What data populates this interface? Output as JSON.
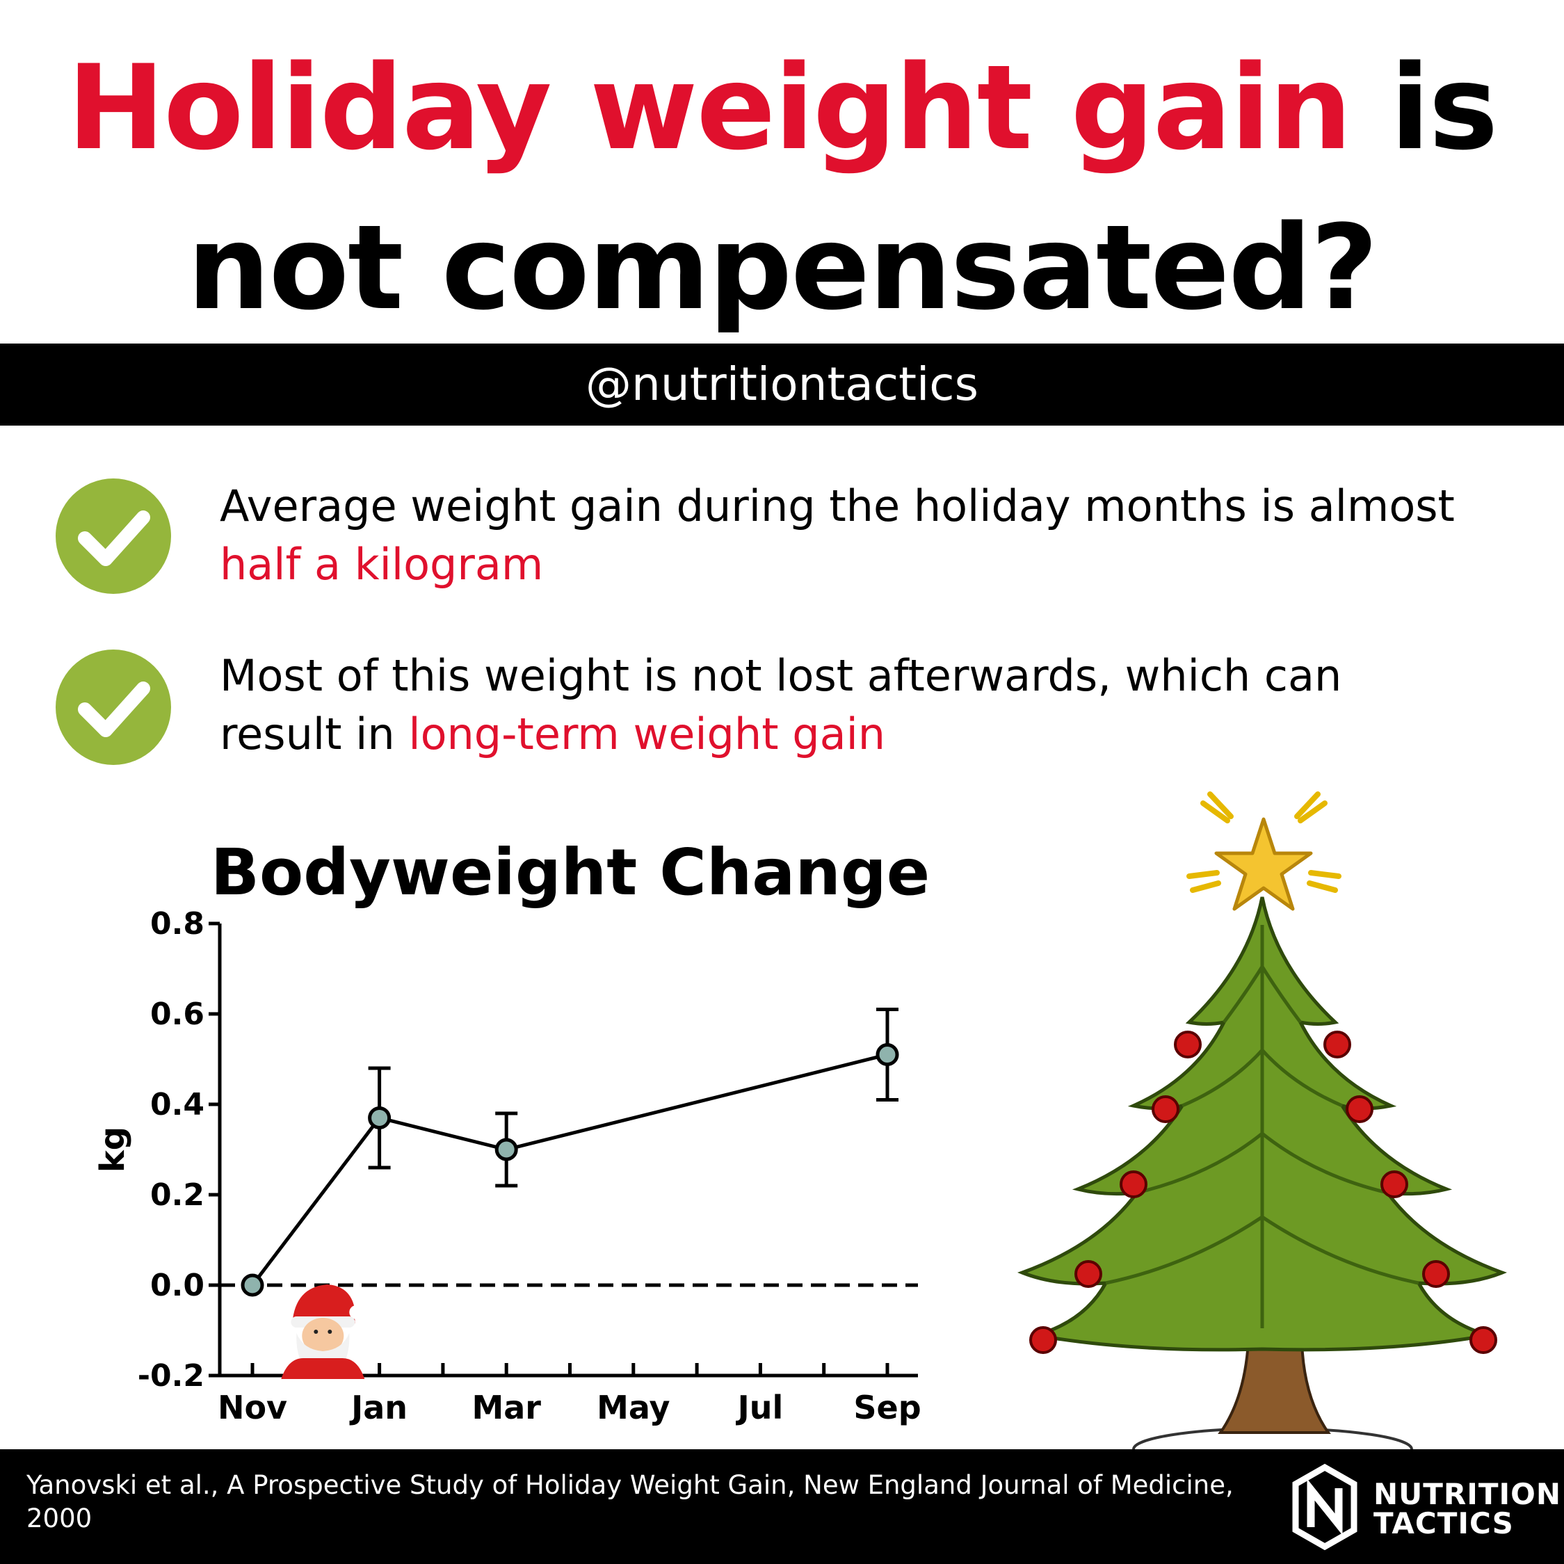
{
  "headline": {
    "red_part": "Holiday weight gain",
    "black_part_1": " is",
    "black_part_2": "not compensated?"
  },
  "handle": "@nutritiontactics",
  "points": [
    {
      "text": "Average weight gain during the holiday months is almost ",
      "highlight": "half a kilogram",
      "icon": "check-icon"
    },
    {
      "text": "Most of this weight is not lost afterwards, which can result in ",
      "highlight": "long-term weight gain",
      "icon": "check-icon"
    }
  ],
  "colors": {
    "accent_red": "#e0102d",
    "check_green": "#95b63c",
    "marker_fill": "#8fb3ad"
  },
  "chart_data": {
    "type": "line",
    "title": "Bodyweight Change",
    "xlabel": "",
    "ylabel": "kg",
    "ylim": [
      -0.2,
      0.8
    ],
    "yticks": [
      "0.8",
      "0.6",
      "0.4",
      "0.2",
      "0.0",
      "-0.2"
    ],
    "xtick_labels": [
      "Nov",
      "Jan",
      "Mar",
      "May",
      "Jul",
      "Sep"
    ],
    "x_months": [
      "Nov",
      "Jan",
      "Mar",
      "Sep"
    ],
    "values": [
      0.0,
      0.37,
      0.3,
      0.51
    ],
    "error_upper": [
      0.0,
      0.48,
      0.38,
      0.61
    ],
    "error_lower": [
      0.0,
      0.26,
      0.22,
      0.41
    ],
    "reference_line": 0.0,
    "annotation_icon": "santa-icon",
    "decoration_icon": "christmas-tree-icon"
  },
  "footer": {
    "citation": "Yanovski et al., A Prospective Study of Holiday Weight Gain, New England Journal of Medicine, 2000",
    "brand_line1": "NUTRITION",
    "brand_line2": "TACTICS"
  }
}
